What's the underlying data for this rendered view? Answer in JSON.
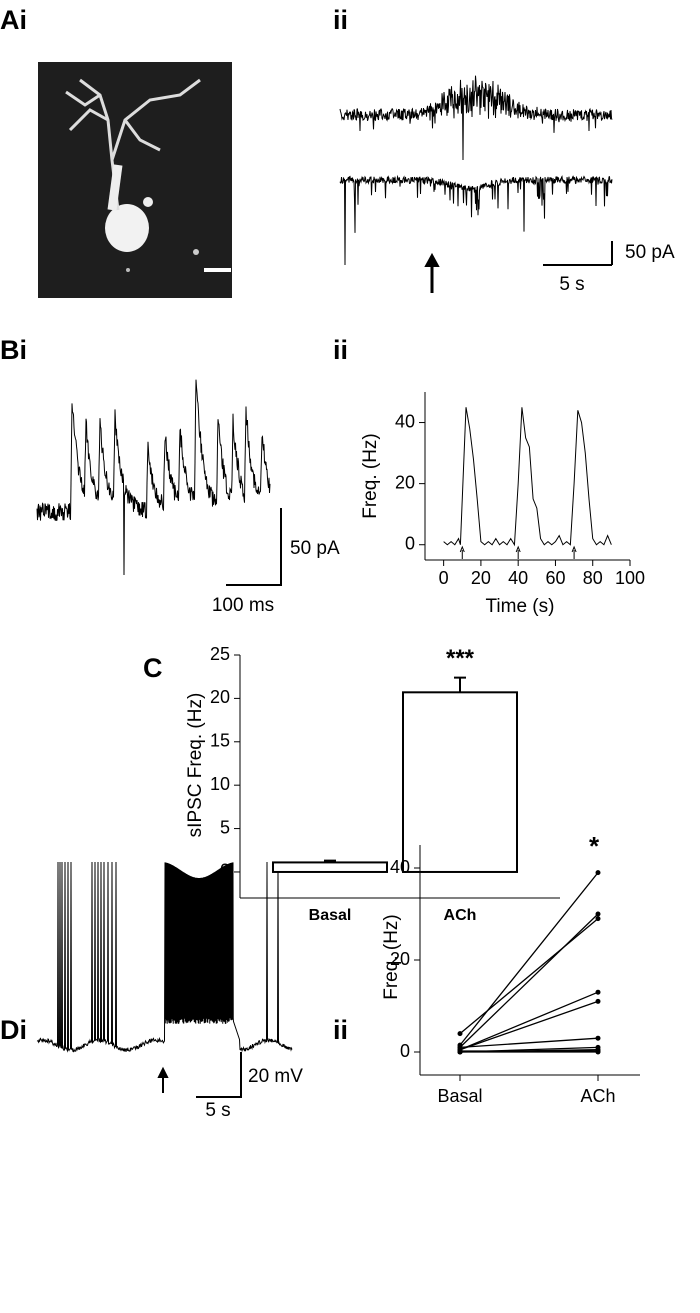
{
  "panel_labels": [
    "Ai",
    "ii",
    "Bi",
    "ii",
    "C",
    "Di",
    "ii"
  ],
  "scale_bars": {
    "a_current": "50 pA",
    "a_time": "5 s",
    "b_current": "50 pA",
    "b_time": "100 ms",
    "d_voltage": "20 mV",
    "d_time": "5 s"
  },
  "chart_data": [
    {
      "type": "line",
      "x_label": "Time (s)",
      "y_label": "Freq. (Hz)",
      "x": [
        0,
        2,
        4,
        6,
        8,
        9,
        10,
        12,
        14,
        16,
        18,
        20,
        22,
        24,
        26,
        28,
        30,
        32,
        34,
        36,
        38,
        40,
        42,
        44,
        46,
        48,
        50,
        52,
        54,
        56,
        58,
        60,
        62,
        64,
        66,
        68,
        70,
        72,
        74,
        76,
        78,
        80,
        82,
        84,
        86,
        88,
        90
      ],
      "values": [
        1,
        0,
        1,
        0,
        2,
        0,
        15,
        45,
        38,
        28,
        15,
        1,
        0,
        1,
        0,
        2,
        0,
        1,
        0,
        2,
        0,
        20,
        45,
        35,
        32,
        15,
        12,
        2,
        0,
        1,
        0,
        1,
        3,
        0,
        1,
        0,
        20,
        44,
        40,
        30,
        15,
        2,
        0,
        1,
        0,
        3,
        0
      ],
      "color": "#000000",
      "arrows": [
        10,
        40,
        70
      ],
      "xlim": [
        -10,
        100
      ],
      "xticks": [
        0,
        20,
        40,
        60,
        80,
        100
      ],
      "ylim": [
        -5,
        50
      ],
      "yticks": [
        0,
        20,
        40
      ]
    },
    {
      "type": "bar",
      "y_label": "sIPSC Freq. (Hz)",
      "categories": [
        "Basal",
        "ACh"
      ],
      "values": [
        1.1,
        20.7
      ],
      "errors": [
        0.2,
        1.7
      ],
      "color": "#ffffff",
      "annotation": "***",
      "ylim": [
        -3,
        25
      ],
      "yticks": [
        0,
        5,
        10,
        15,
        20,
        25
      ]
    },
    {
      "type": "paired",
      "y_label": "Freq. (Hz)",
      "categories": [
        "Basal",
        "ACh"
      ],
      "annotation": "*",
      "color": "#000000",
      "series": [
        {
          "values": [
            4,
            29
          ]
        },
        {
          "values": [
            1.5,
            39
          ]
        },
        {
          "values": [
            1,
            30
          ]
        },
        {
          "values": [
            0.5,
            13
          ]
        },
        {
          "values": [
            0.5,
            11
          ]
        },
        {
          "values": [
            1,
            3
          ]
        },
        {
          "values": [
            0,
            1
          ]
        },
        {
          "values": [
            0,
            0.5
          ]
        },
        {
          "values": [
            0,
            0
          ]
        },
        {
          "values": [
            0.2,
            0.2
          ]
        }
      ],
      "ylim": [
        -5,
        45
      ],
      "yticks": [
        0,
        20,
        40
      ]
    }
  ]
}
